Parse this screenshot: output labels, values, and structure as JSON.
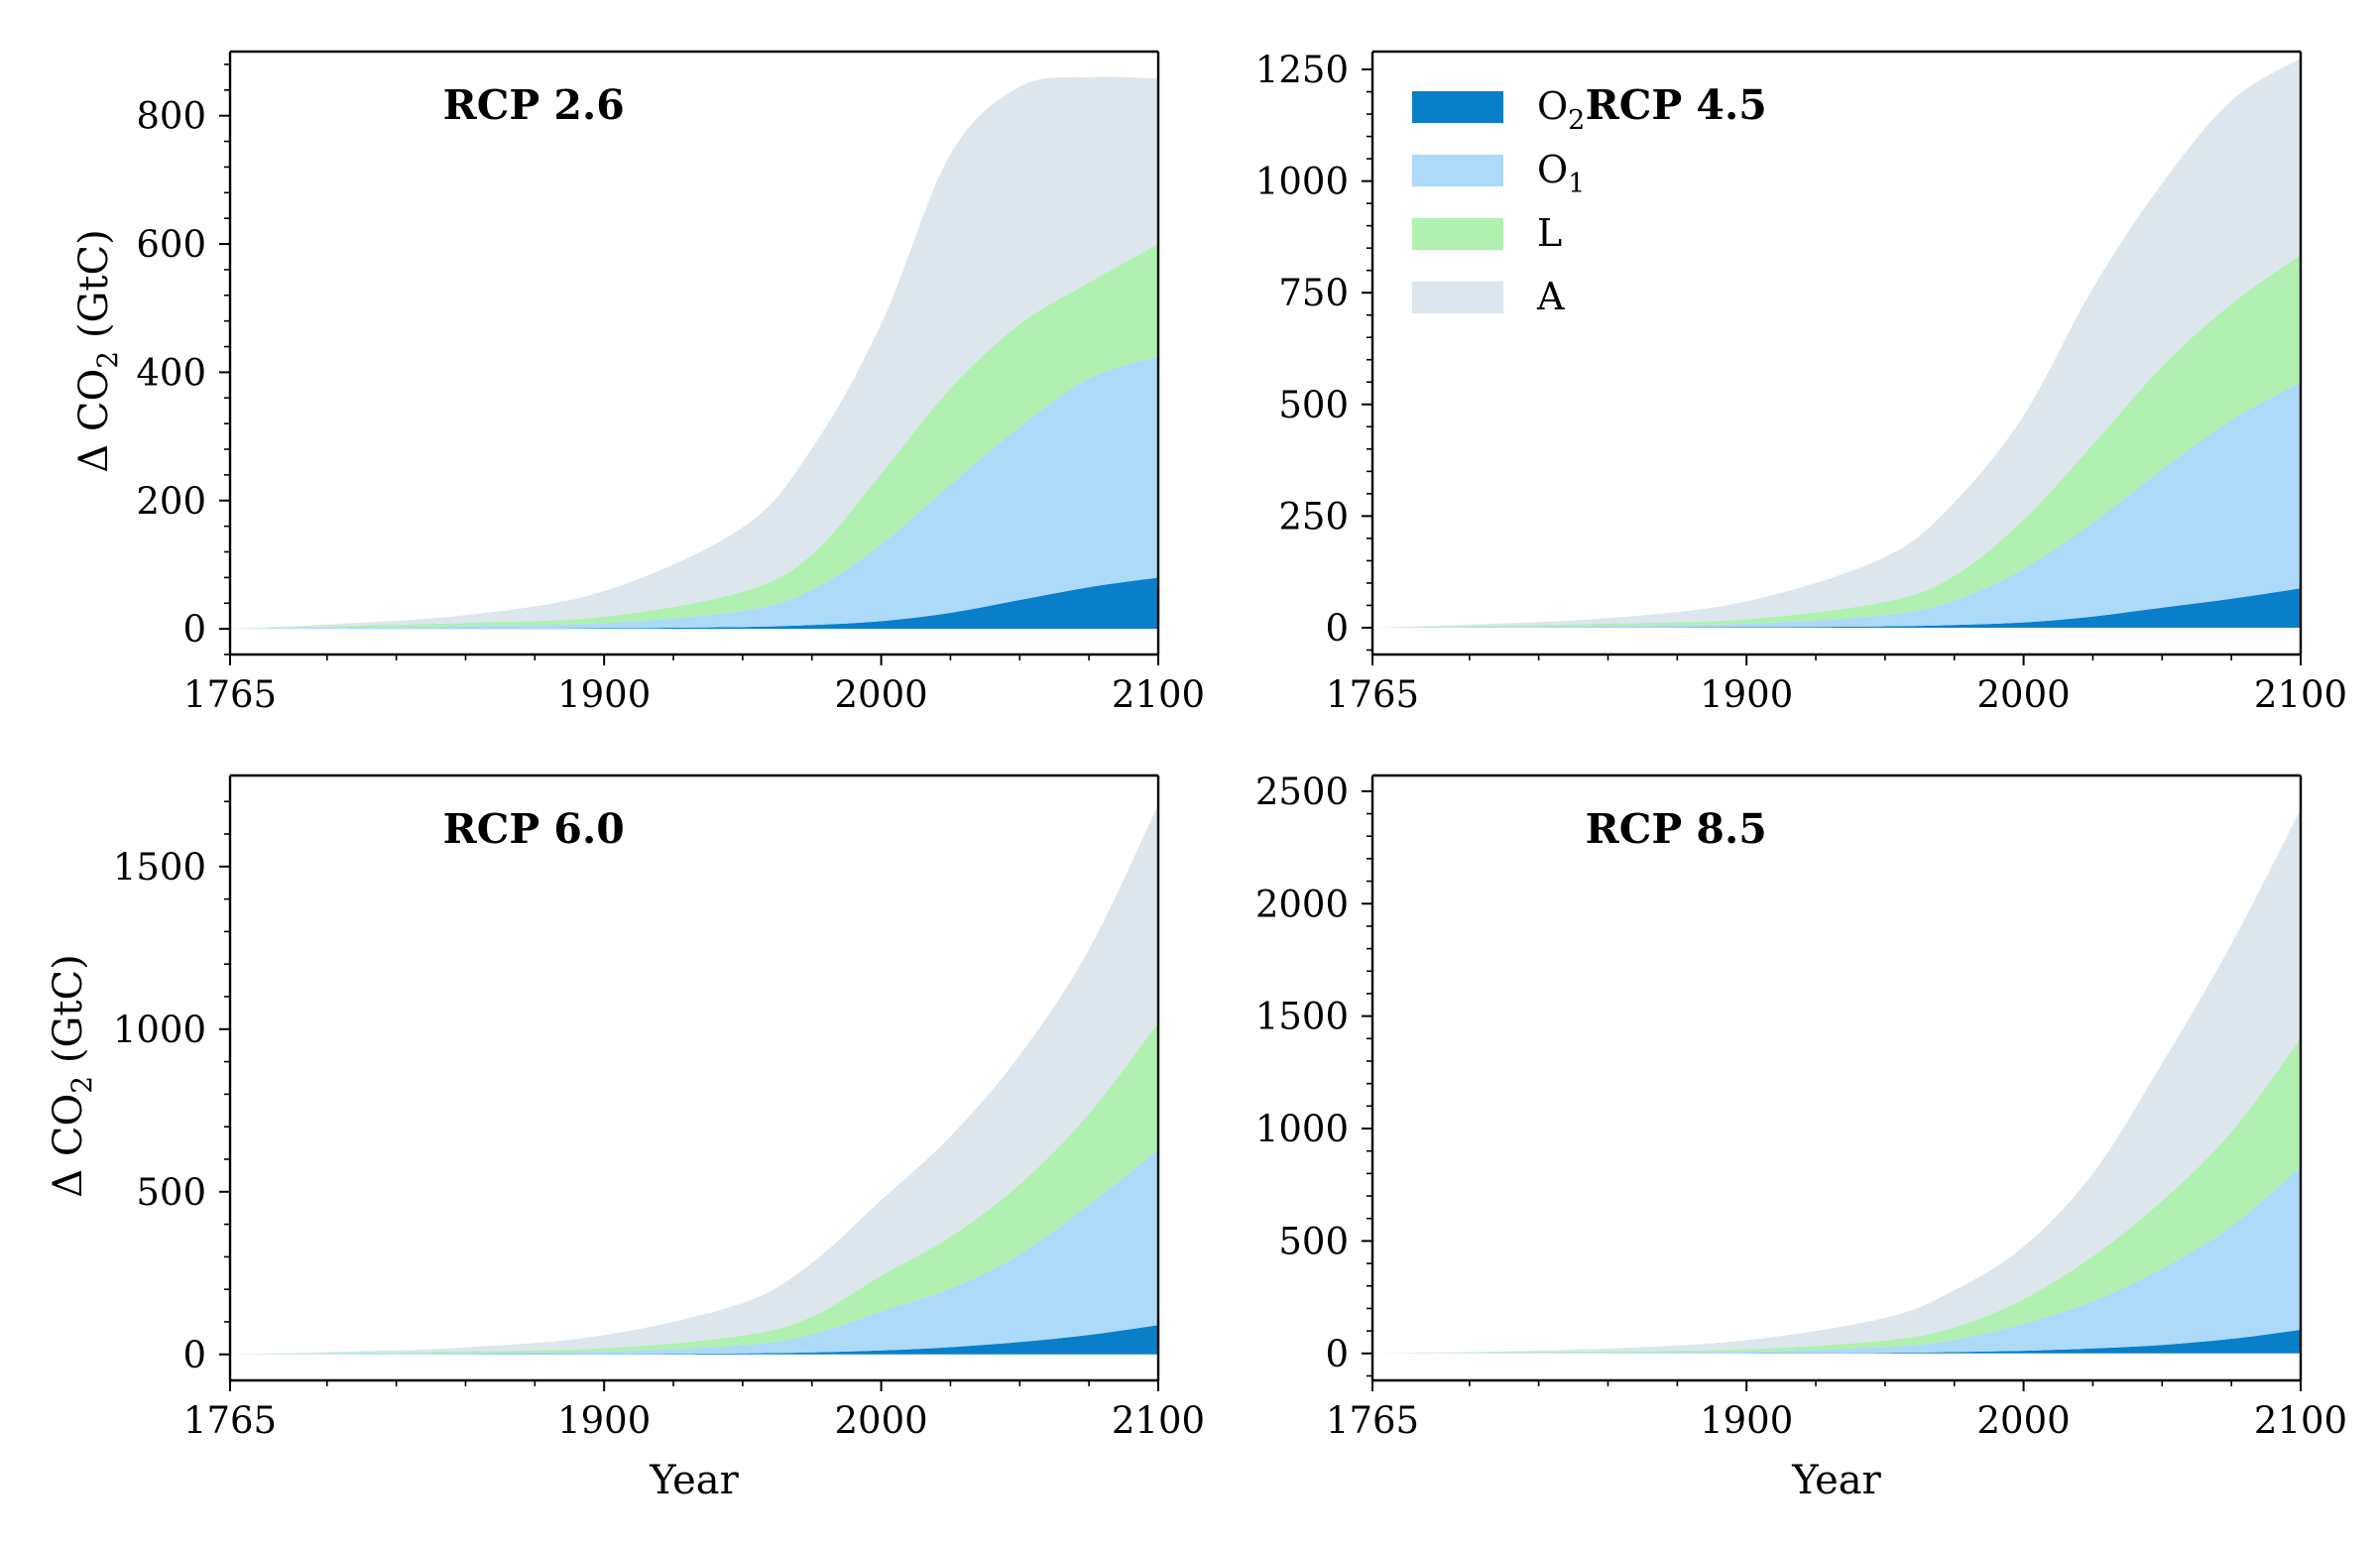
{
  "figure": {
    "x_label": "Year",
    "y_label": "Δ CO",
    "y_label_sub": "2",
    "y_label_unit": "(GtC)"
  },
  "legend": {
    "placement": "upper-left of top-right panel",
    "entries": [
      {
        "key": "O2",
        "label": "O",
        "sub": "2",
        "color": "#0a7fc9"
      },
      {
        "key": "O1",
        "label": "O",
        "sub": "1",
        "color": "#acdaf8"
      },
      {
        "key": "L",
        "label": "L",
        "sub": "",
        "color": "#b0f0b0"
      },
      {
        "key": "A",
        "label": "A",
        "sub": "",
        "color": "#dce6ec"
      }
    ]
  },
  "chart_data": [
    {
      "type": "area",
      "stacked": true,
      "title": "RCP 2.6",
      "xlim": [
        1765,
        2100
      ],
      "xticks": [
        1765,
        1900,
        2000,
        2100
      ],
      "ylim": [
        -40,
        900
      ],
      "yticks": [
        0,
        200,
        400,
        600,
        800
      ],
      "x": [
        1765,
        1800,
        1850,
        1900,
        1950,
        1975,
        2000,
        2025,
        2050,
        2075,
        2100
      ],
      "series": [
        {
          "name": "O2",
          "values": [
            0,
            0,
            0.5,
            1,
            3,
            6,
            12,
            25,
            45,
            65,
            80
          ]
        },
        {
          "name": "O1",
          "values": [
            0,
            2,
            4,
            8,
            25,
            55,
            120,
            200,
            270,
            325,
            345
          ]
        },
        {
          "name": "L",
          "values": [
            0,
            2,
            5,
            10,
            30,
            55,
            110,
            150,
            160,
            150,
            175
          ]
        },
        {
          "name": "A",
          "values": [
            0,
            3,
            12,
            40,
            100,
            165,
            233,
            365,
            370,
            320,
            258
          ]
        }
      ]
    },
    {
      "type": "area",
      "stacked": true,
      "title": "RCP 4.5",
      "xlim": [
        1765,
        2100
      ],
      "xticks": [
        1765,
        1900,
        2000,
        2100
      ],
      "ylim": [
        -60,
        1290
      ],
      "yticks": [
        0,
        250,
        500,
        750,
        1000,
        1250
      ],
      "x": [
        1765,
        1800,
        1850,
        1900,
        1950,
        1975,
        2000,
        2025,
        2050,
        2075,
        2100
      ],
      "series": [
        {
          "name": "O2",
          "values": [
            0,
            0,
            0.5,
            1,
            3,
            6,
            12,
            25,
            45,
            65,
            88
          ]
        },
        {
          "name": "O1",
          "values": [
            0,
            2,
            4,
            8,
            25,
            55,
            120,
            210,
            310,
            400,
            462
          ]
        },
        {
          "name": "L",
          "values": [
            0,
            2,
            5,
            10,
            30,
            55,
            110,
            175,
            230,
            260,
            285
          ]
        },
        {
          "name": "A",
          "values": [
            0,
            3,
            12,
            40,
            100,
            165,
            233,
            350,
            410,
            455,
            440
          ]
        }
      ]
    },
    {
      "type": "area",
      "stacked": true,
      "title": "RCP 6.0",
      "xlim": [
        1765,
        2100
      ],
      "xticks": [
        1765,
        1900,
        2000,
        2100
      ],
      "ylim": [
        -80,
        1780
      ],
      "yticks": [
        0,
        500,
        1000,
        1500
      ],
      "x": [
        1765,
        1800,
        1850,
        1900,
        1950,
        1975,
        2000,
        2025,
        2050,
        2075,
        2100
      ],
      "series": [
        {
          "name": "O2",
          "values": [
            0,
            0,
            0.5,
            1,
            3,
            6,
            12,
            22,
            38,
            60,
            90
          ]
        },
        {
          "name": "O1",
          "values": [
            0,
            2,
            4,
            8,
            25,
            55,
            120,
            180,
            270,
            400,
            540
          ]
        },
        {
          "name": "L",
          "values": [
            0,
            2,
            5,
            10,
            30,
            55,
            110,
            160,
            215,
            280,
            390
          ]
        },
        {
          "name": "A",
          "values": [
            0,
            3,
            12,
            40,
            100,
            165,
            233,
            308,
            397,
            505,
            670
          ]
        }
      ]
    },
    {
      "type": "area",
      "stacked": true,
      "title": "RCP 8.5",
      "xlim": [
        1765,
        2100
      ],
      "xticks": [
        1765,
        1900,
        2000,
        2100
      ],
      "ylim": [
        -120,
        2570
      ],
      "yticks": [
        0,
        500,
        1000,
        1500,
        2000,
        2500
      ],
      "x": [
        1765,
        1800,
        1850,
        1900,
        1950,
        1975,
        2000,
        2025,
        2050,
        2075,
        2100
      ],
      "series": [
        {
          "name": "O2",
          "values": [
            0,
            0,
            0.5,
            1,
            3,
            6,
            12,
            22,
            38,
            65,
            105
          ]
        },
        {
          "name": "O1",
          "values": [
            0,
            2,
            4,
            8,
            25,
            55,
            120,
            210,
            340,
            500,
            725
          ]
        },
        {
          "name": "L",
          "values": [
            0,
            2,
            5,
            10,
            30,
            55,
            110,
            200,
            300,
            420,
            570
          ]
        },
        {
          "name": "A",
          "values": [
            0,
            3,
            12,
            40,
            100,
            165,
            233,
            368,
            612,
            835,
            1020
          ]
        }
      ]
    }
  ]
}
